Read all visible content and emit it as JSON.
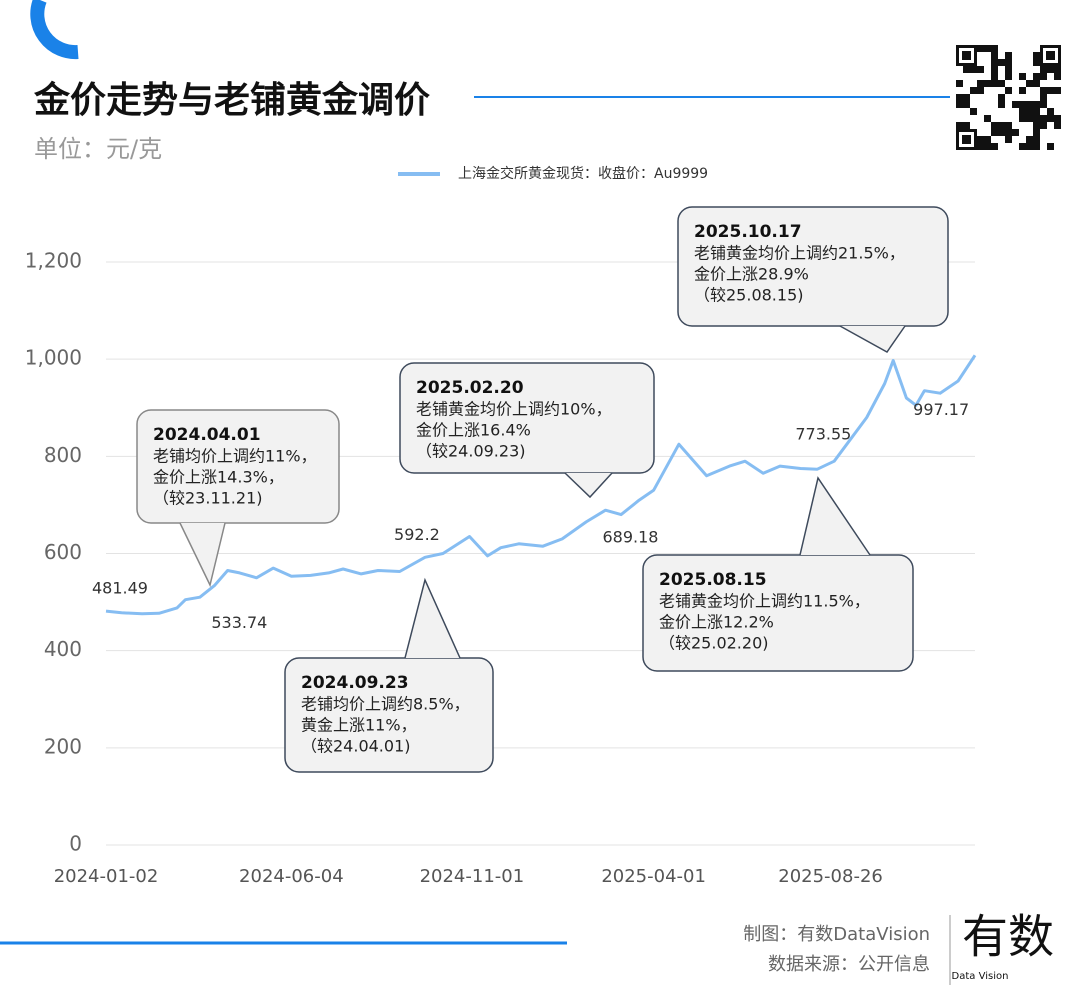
{
  "chart_data": {
    "type": "line",
    "title": "金价走势与老铺黄金调价",
    "subtitle": "单位：元/克",
    "x": [
      "2024-01-02",
      "2024-01-15",
      "2024-02-01",
      "2024-02-15",
      "2024-03-01",
      "2024-03-08",
      "2024-03-20",
      "2024-04-01",
      "2024-04-12",
      "2024-04-22",
      "2024-05-06",
      "2024-05-20",
      "2024-06-04",
      "2024-06-20",
      "2024-07-05",
      "2024-07-17",
      "2024-08-01",
      "2024-08-15",
      "2024-09-02",
      "2024-09-23",
      "2024-10-08",
      "2024-10-30",
      "2024-11-14",
      "2024-11-25",
      "2024-12-10",
      "2024-12-30",
      "2025-01-15",
      "2025-02-04",
      "2025-02-20",
      "2025-03-05",
      "2025-03-20",
      "2025-04-01",
      "2025-04-22",
      "2025-05-15",
      "2025-06-03",
      "2025-06-16",
      "2025-07-01",
      "2025-07-15",
      "2025-08-01",
      "2025-08-15",
      "2025-08-29",
      "2025-09-10",
      "2025-09-25",
      "2025-10-10",
      "2025-10-17",
      "2025-10-28",
      "2025-11-05",
      "2025-11-12",
      "2025-11-25",
      "2025-12-10",
      "2025-12-24"
    ],
    "series": [
      {
        "name": "上海金交所黄金现货：收盘价：Au9999",
        "color": "#86bdf2",
        "values": [
          481.49,
          478,
          476,
          477,
          488,
          505,
          510,
          533.74,
          565,
          560,
          550,
          570,
          553,
          555,
          560,
          568,
          558,
          565,
          563,
          592.2,
          600,
          635,
          595,
          612,
          620,
          615,
          630,
          665,
          689.18,
          680,
          710,
          730,
          825,
          760,
          780,
          790,
          765,
          780,
          775,
          773.55,
          790,
          830,
          880,
          950,
          997.17,
          920,
          905,
          935,
          930,
          955,
          1008
        ],
        "value_labels": [
          "481.49",
          null,
          null,
          null,
          null,
          null,
          null,
          "533.74",
          null,
          null,
          null,
          null,
          null,
          null,
          null,
          null,
          null,
          null,
          null,
          "592.2",
          null,
          null,
          null,
          null,
          null,
          null,
          null,
          null,
          "689.18",
          null,
          null,
          null,
          null,
          null,
          null,
          null,
          null,
          null,
          null,
          "773.55",
          null,
          null,
          null,
          null,
          "997.17",
          null,
          null,
          null,
          null,
          null,
          null
        ]
      }
    ],
    "xlim": [
      "2024-01-02",
      "2025-12-24"
    ],
    "xticks": [
      "2024-01-02",
      "2024-06-04",
      "2024-11-01",
      "2025-04-01",
      "2025-08-26"
    ],
    "ylim": [
      0,
      1200
    ],
    "yticks": [
      0,
      200,
      400,
      600,
      800,
      {
        "value": 1000,
        "label": "1,000"
      },
      {
        "value": 1200,
        "label": "1,200"
      }
    ],
    "grid": true,
    "callouts": [
      {
        "title": "2024.04.01",
        "lines": [
          "老铺均价上调约11%，",
          "金价上涨14.3%，",
          "（较23.11.21)"
        ]
      },
      {
        "title": "2024.09.23",
        "lines": [
          "老铺均价上调约8.5%，",
          "黄金上涨11%，",
          "（较24.04.01)"
        ]
      },
      {
        "title": "2025.02.20",
        "lines": [
          "老铺黄金均价上调约10%，",
          "金价上涨16.4%",
          "（较24.09.23)"
        ]
      },
      {
        "title": "2025.08.15",
        "lines": [
          "老铺黄金均价上调约11.5%，",
          "金价上涨12.2%",
          "（较25.02.20)"
        ]
      },
      {
        "title": "2025.10.17",
        "lines": [
          "老铺黄金均价上调约21.5%，",
          "金价上涨28.9%",
          "（较25.08.15)"
        ]
      }
    ]
  },
  "footer": {
    "credit": "制图：有数DataVision",
    "source": "数据来源：公开信息",
    "logo": "有数",
    "logo_sub": "Data Vision"
  }
}
